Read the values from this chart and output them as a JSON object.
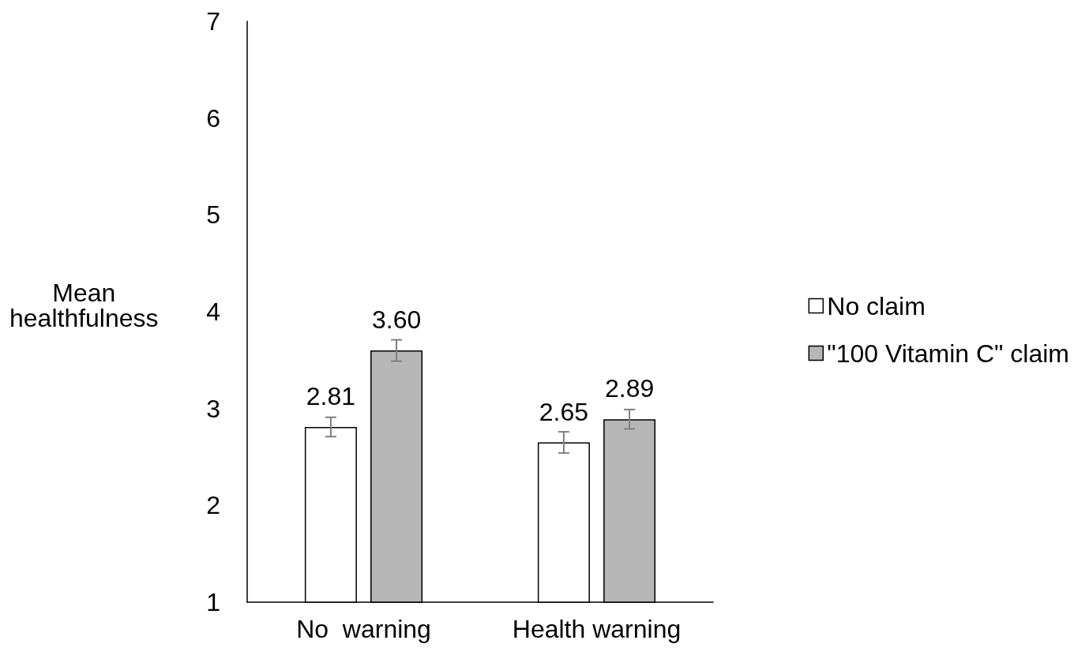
{
  "chart_data": {
    "type": "bar",
    "ylabel": "Mean\nhealthfulness",
    "categories": [
      "No  warning",
      "Health warning"
    ],
    "series": [
      {
        "name": "No claim",
        "color": "#ffffff",
        "values": [
          2.81,
          2.65
        ],
        "value_labels": [
          "2.81",
          "2.65"
        ],
        "errors": [
          0.1,
          0.11
        ]
      },
      {
        "name": "\"100 Vitamin C\" claim",
        "color": "#b7b7b7",
        "values": [
          3.6,
          2.89
        ],
        "value_labels": [
          "3.60",
          "2.89"
        ],
        "errors": [
          0.11,
          0.1
        ]
      }
    ],
    "ylim": [
      1,
      7
    ],
    "yticks": [
      1,
      2,
      3,
      4,
      5,
      6,
      7
    ],
    "grid": false,
    "legend": "right"
  }
}
